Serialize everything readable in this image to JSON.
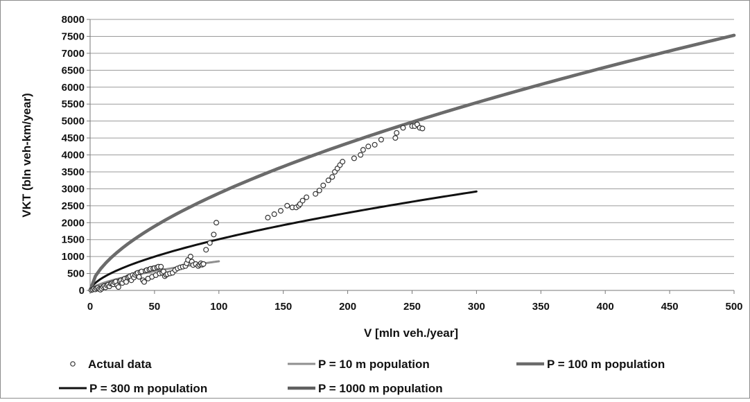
{
  "chart_data": {
    "type": "scatter",
    "xlabel": "V [mln veh./year]",
    "ylabel": "VKT (bln veh-km/year)",
    "xlim": [
      0,
      500
    ],
    "ylim": [
      0,
      8000
    ],
    "x_ticks": [
      0,
      50,
      100,
      150,
      200,
      250,
      300,
      350,
      400,
      450,
      500
    ],
    "y_ticks": [
      0,
      500,
      1000,
      1500,
      2000,
      2500,
      3000,
      3500,
      4000,
      4500,
      5000,
      5500,
      6000,
      6500,
      7000,
      7500,
      8000
    ],
    "grid": "horizontal",
    "legend_position": "bottom",
    "series": [
      {
        "name": "Actual data",
        "kind": "scatter",
        "color": "#ffffff",
        "stroke": "#333333",
        "points": [
          [
            1,
            10
          ],
          [
            2,
            25
          ],
          [
            3,
            50
          ],
          [
            4,
            30
          ],
          [
            5,
            60
          ],
          [
            6,
            80
          ],
          [
            7,
            40
          ],
          [
            8,
            20
          ],
          [
            9,
            55
          ],
          [
            10,
            100
          ],
          [
            11,
            130
          ],
          [
            12,
            90
          ],
          [
            13,
            150
          ],
          [
            14,
            170
          ],
          [
            15,
            120
          ],
          [
            16,
            200
          ],
          [
            17,
            210
          ],
          [
            18,
            180
          ],
          [
            19,
            240
          ],
          [
            20,
            260
          ],
          [
            21,
            150
          ],
          [
            22,
            100
          ],
          [
            23,
            280
          ],
          [
            24,
            300
          ],
          [
            25,
            220
          ],
          [
            26,
            320
          ],
          [
            27,
            350
          ],
          [
            28,
            250
          ],
          [
            29,
            380
          ],
          [
            30,
            400
          ],
          [
            31,
            420
          ],
          [
            32,
            300
          ],
          [
            33,
            450
          ],
          [
            34,
            380
          ],
          [
            35,
            460
          ],
          [
            36,
            500
          ],
          [
            37,
            520
          ],
          [
            38,
            400
          ],
          [
            39,
            540
          ],
          [
            40,
            560
          ],
          [
            41,
            300
          ],
          [
            42,
            250
          ],
          [
            43,
            580
          ],
          [
            44,
            600
          ],
          [
            45,
            350
          ],
          [
            46,
            620
          ],
          [
            47,
            640
          ],
          [
            48,
            400
          ],
          [
            49,
            650
          ],
          [
            50,
            660
          ],
          [
            51,
            450
          ],
          [
            52,
            680
          ],
          [
            53,
            700
          ],
          [
            54,
            500
          ],
          [
            55,
            700
          ],
          [
            56,
            520
          ],
          [
            57,
            560
          ],
          [
            58,
            420
          ],
          [
            59,
            460
          ],
          [
            60,
            480
          ],
          [
            62,
            500
          ],
          [
            64,
            520
          ],
          [
            66,
            600
          ],
          [
            68,
            650
          ],
          [
            70,
            680
          ],
          [
            72,
            700
          ],
          [
            74,
            720
          ],
          [
            75,
            800
          ],
          [
            76,
            900
          ],
          [
            78,
            1000
          ],
          [
            79,
            850
          ],
          [
            80,
            750
          ],
          [
            82,
            780
          ],
          [
            84,
            720
          ],
          [
            85,
            760
          ],
          [
            86,
            800
          ],
          [
            87,
            760
          ],
          [
            88,
            780
          ],
          [
            90,
            1200
          ],
          [
            93,
            1400
          ],
          [
            96,
            1650
          ],
          [
            98,
            2000
          ],
          [
            138,
            2150
          ],
          [
            143,
            2250
          ],
          [
            148,
            2350
          ],
          [
            153,
            2500
          ],
          [
            157,
            2450
          ],
          [
            160,
            2450
          ],
          [
            162,
            2500
          ],
          [
            163,
            2550
          ],
          [
            165,
            2650
          ],
          [
            168,
            2750
          ],
          [
            175,
            2850
          ],
          [
            178,
            2950
          ],
          [
            181,
            3100
          ],
          [
            185,
            3250
          ],
          [
            188,
            3350
          ],
          [
            190,
            3500
          ],
          [
            192,
            3600
          ],
          [
            194,
            3700
          ],
          [
            196,
            3800
          ],
          [
            205,
            3900
          ],
          [
            210,
            4000
          ],
          [
            212,
            4150
          ],
          [
            216,
            4250
          ],
          [
            221,
            4300
          ],
          [
            226,
            4450
          ],
          [
            237,
            4500
          ],
          [
            238,
            4650
          ],
          [
            243,
            4800
          ],
          [
            250,
            4850
          ],
          [
            252,
            4850
          ],
          [
            254,
            4900
          ],
          [
            256,
            4800
          ],
          [
            258,
            4780
          ]
        ]
      },
      {
        "name": "P = 10 m population",
        "kind": "line",
        "color": "#8f8f8f",
        "width": 3,
        "x_max": 100,
        "y_end": 860,
        "exponent": 0.6
      },
      {
        "name": "P = 100 m population",
        "kind": "line",
        "color": "#6b6b6b",
        "width": 4.5,
        "x_max": 500,
        "y_end": 7530,
        "exponent": 0.6
      },
      {
        "name": "P = 300 m population",
        "kind": "line",
        "color": "#111111",
        "width": 3,
        "x_max": 300,
        "y_end": 2920,
        "exponent": 0.6
      },
      {
        "name": "P = 1000 m population",
        "kind": "line",
        "color": "#5f5f5f",
        "width": 4.5,
        "x_max": 500,
        "y_end": 7530,
        "exponent": 0.6,
        "hidden_under": "P = 100 m population"
      }
    ]
  }
}
